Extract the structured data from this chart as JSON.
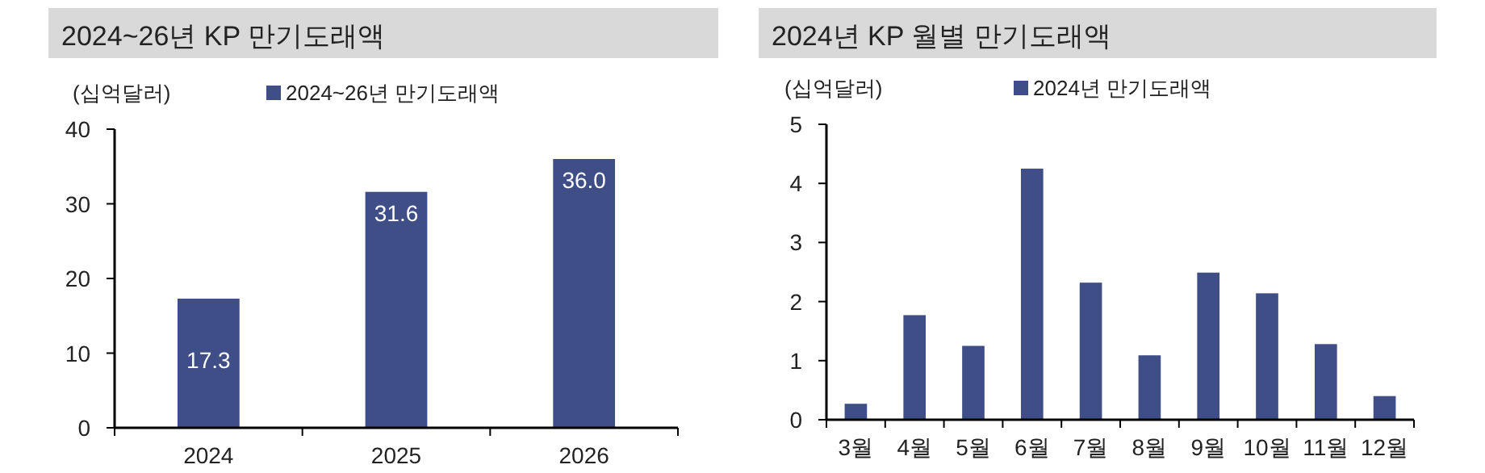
{
  "chart_data": [
    {
      "type": "bar",
      "title": "2024~26년 KP 만기도래액",
      "ylabel": "(십억달러)",
      "categories": [
        "2024",
        "2025",
        "2026"
      ],
      "series": [
        {
          "name": "2024~26년 만기도래액",
          "color": "#3f4e87",
          "values": [
            17.3,
            31.6,
            36.0
          ],
          "value_labels": [
            "17.3",
            "31.6",
            "36.0"
          ]
        }
      ],
      "ylim": [
        0,
        40
      ],
      "yticks": [
        0,
        10,
        20,
        30,
        40
      ],
      "legend": "top",
      "grid": false
    },
    {
      "type": "bar",
      "title": "2024년 KP 월별 만기도래액",
      "ylabel": "(십억달러)",
      "categories": [
        "3월",
        "4월",
        "5월",
        "6월",
        "7월",
        "8월",
        "9월",
        "10월",
        "11월",
        "12월"
      ],
      "series": [
        {
          "name": "2024년 만기도래액",
          "color": "#3f4e87",
          "values": [
            0.27,
            1.77,
            1.25,
            4.25,
            2.32,
            1.09,
            2.49,
            2.14,
            1.28,
            0.4
          ]
        }
      ],
      "ylim": [
        0,
        5
      ],
      "yticks": [
        0,
        1,
        2,
        3,
        4,
        5
      ],
      "legend": "top",
      "grid": false
    }
  ]
}
